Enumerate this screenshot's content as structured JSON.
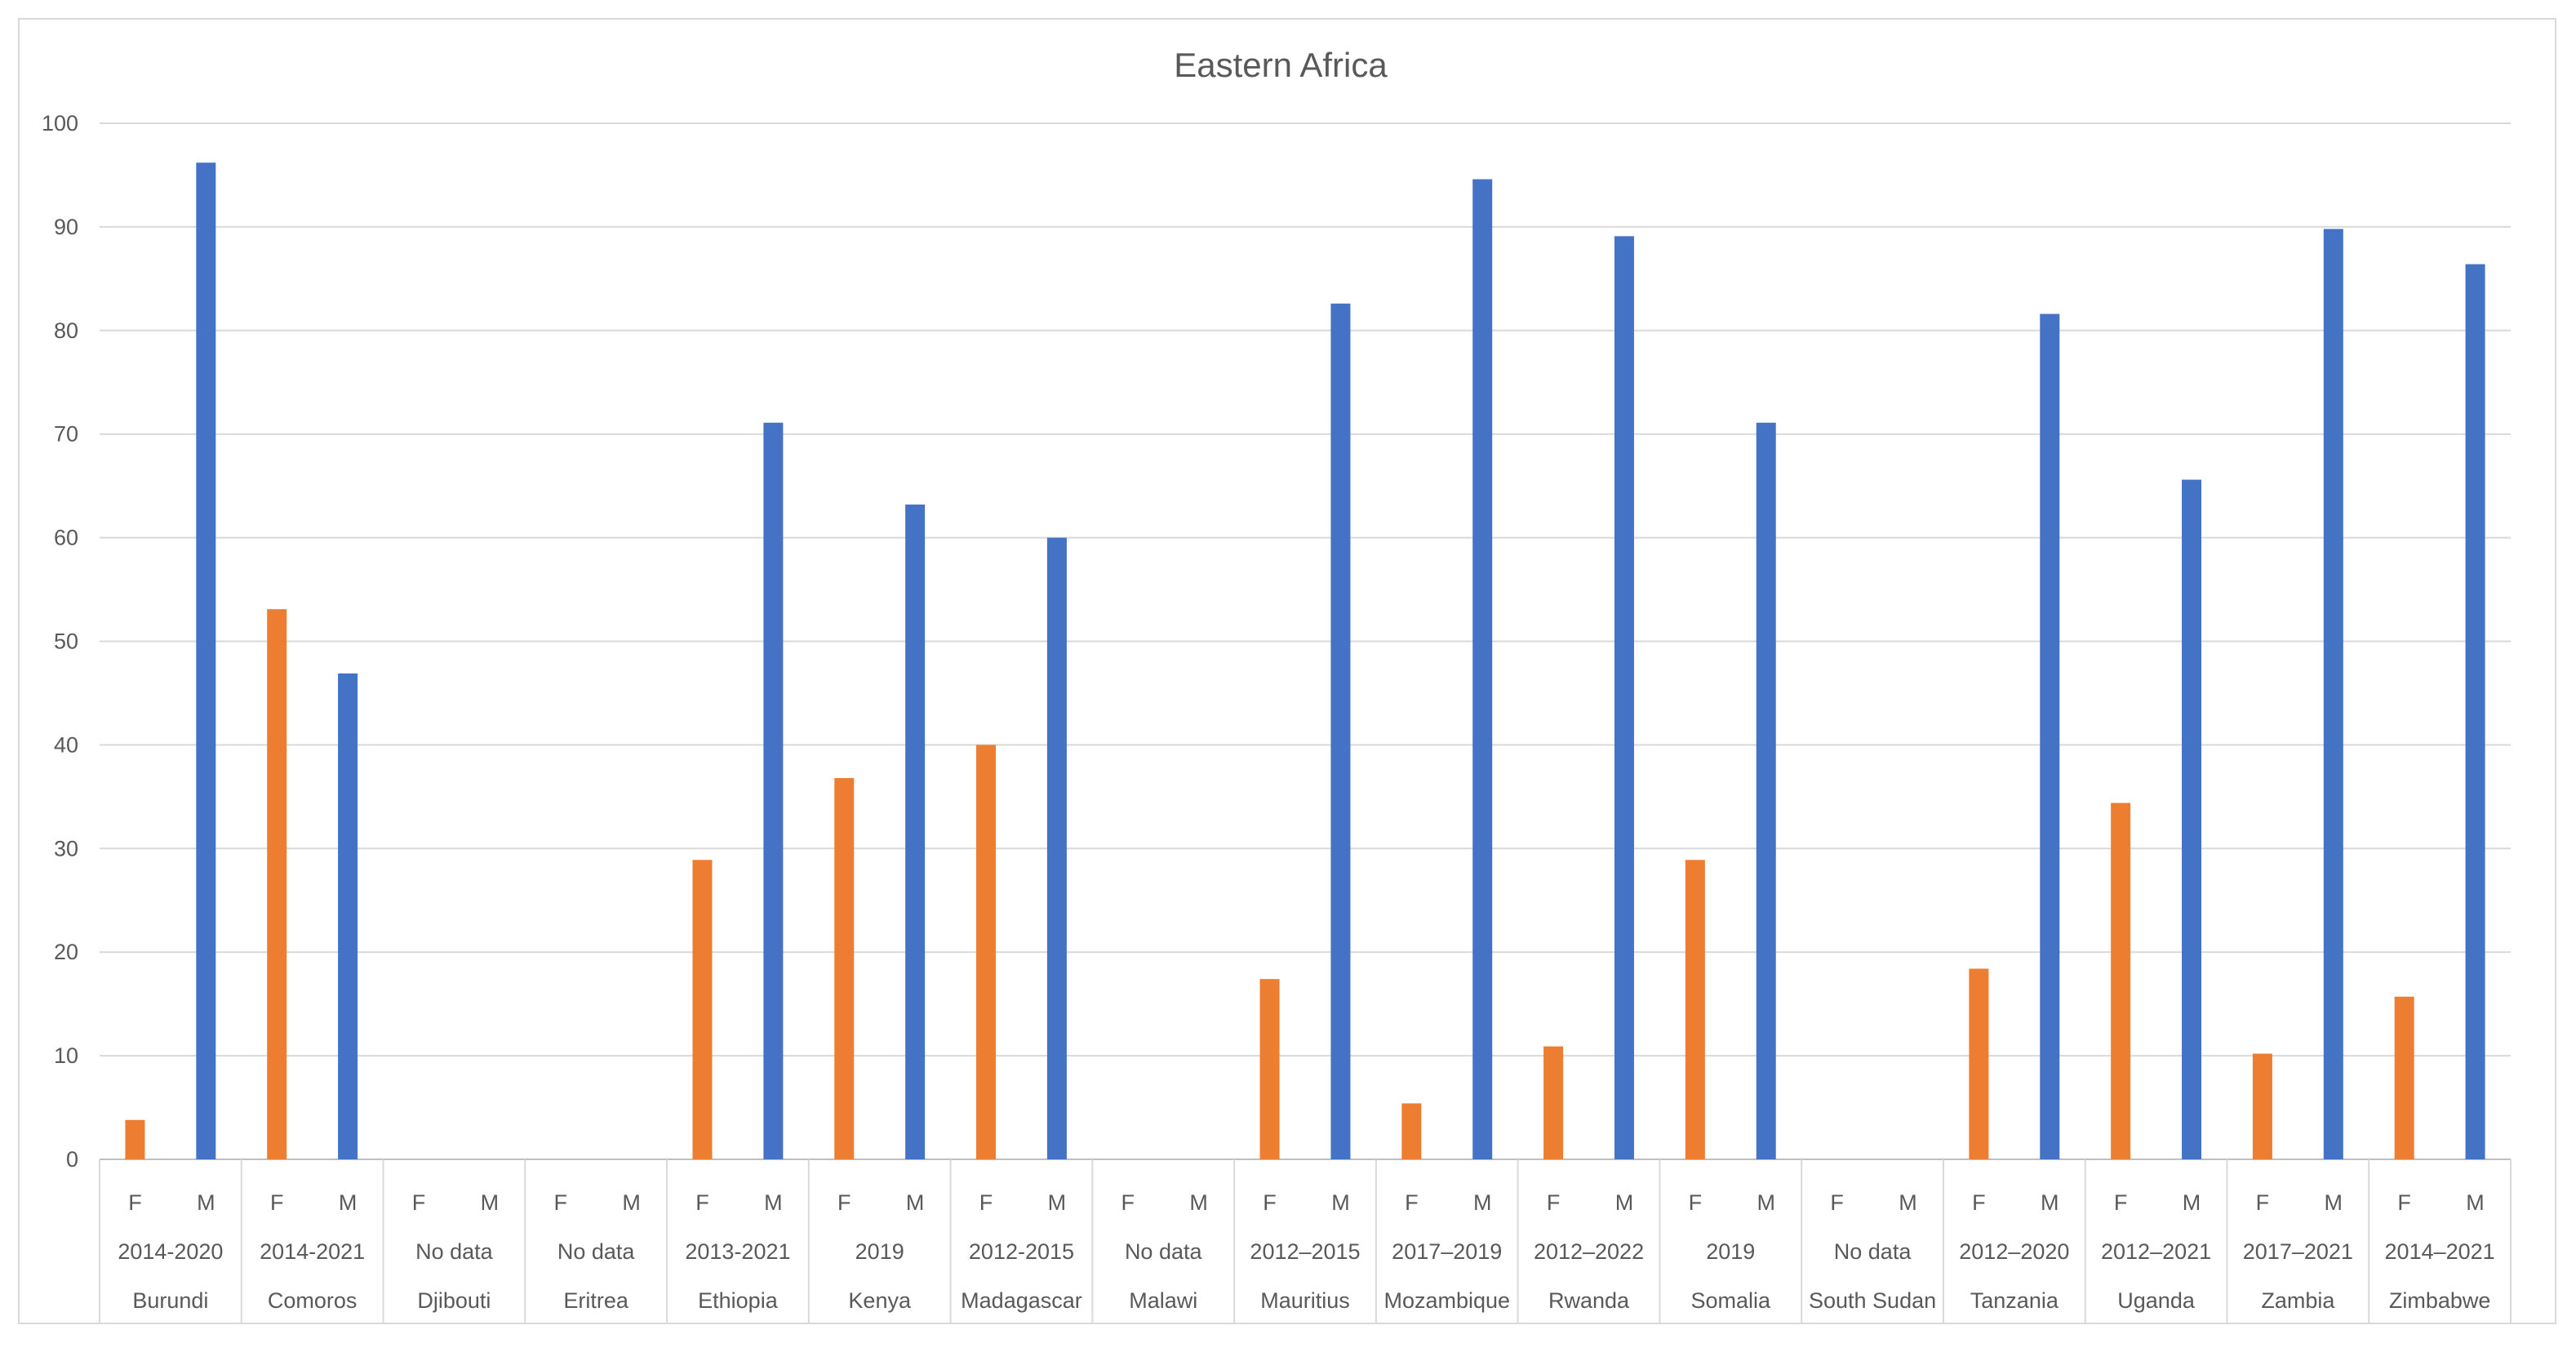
{
  "chart_data": {
    "type": "bar",
    "title": "Eastern Africa",
    "xlabel": "",
    "ylabel": "",
    "ylim": [
      0,
      100
    ],
    "yticks": [
      0,
      10,
      20,
      30,
      40,
      50,
      60,
      70,
      80,
      90,
      100
    ],
    "grid": true,
    "legend": "none",
    "colors": {
      "F": "#ed7d31",
      "M": "#4472c4"
    },
    "groups": [
      {
        "country": "Burundi",
        "period": "2014-2020",
        "F": 3.8,
        "M": 96.2
      },
      {
        "country": "Comoros",
        "period": "2014-2021",
        "F": 53.1,
        "M": 46.9
      },
      {
        "country": "Djibouti",
        "period": "No data",
        "F": null,
        "M": null
      },
      {
        "country": "Eritrea",
        "period": "No data",
        "F": null,
        "M": null
      },
      {
        "country": "Ethiopia",
        "period": "2013-2021",
        "F": 28.9,
        "M": 71.1
      },
      {
        "country": "Kenya",
        "period": "2019",
        "F": 36.8,
        "M": 63.2
      },
      {
        "country": "Madagascar",
        "period": "2012-2015",
        "F": 40.0,
        "M": 60.0
      },
      {
        "country": "Malawi",
        "period": "No data",
        "F": null,
        "M": null
      },
      {
        "country": "Mauritius",
        "period": "2012–2015",
        "F": 17.4,
        "M": 82.6
      },
      {
        "country": "Mozambique",
        "period": "2017–2019",
        "F": 5.4,
        "M": 94.6
      },
      {
        "country": "Rwanda",
        "period": "2012–2022",
        "F": 10.9,
        "M": 89.1
      },
      {
        "country": "Somalia",
        "period": "2019",
        "F": 28.9,
        "M": 71.1
      },
      {
        "country": "South Sudan",
        "period": "No data",
        "F": null,
        "M": null
      },
      {
        "country": "Tanzania",
        "period": "2012–2020",
        "F": 18.4,
        "M": 81.6
      },
      {
        "country": "Uganda",
        "period": "2012–2021",
        "F": 34.4,
        "M": 65.6
      },
      {
        "country": "Zambia",
        "period": "2017–2021",
        "F": 10.2,
        "M": 89.8
      },
      {
        "country": "Zimbabwe",
        "period": "2014–2021",
        "F": 15.7,
        "M": 86.4
      }
    ]
  }
}
